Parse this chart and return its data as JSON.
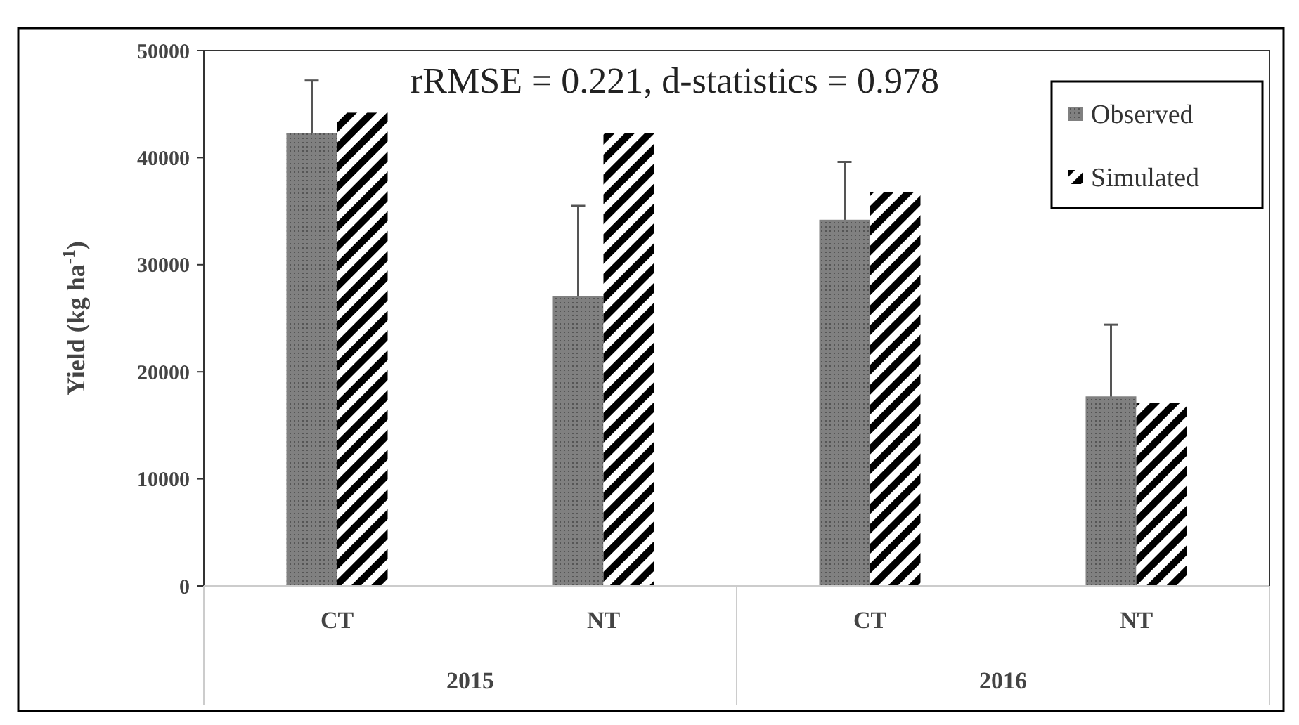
{
  "chart_data": {
    "type": "bar",
    "ylabel": "Yield (kg ha$^{-1}$)",
    "categories": [
      "CT",
      "NT",
      "CT",
      "NT"
    ],
    "series": [
      {
        "name": "Observed",
        "color": "#808080",
        "values": [
          42300,
          27100,
          34200,
          17700
        ],
        "errors": [
          4900,
          8400,
          5400,
          6700
        ]
      },
      {
        "name": "Simulated",
        "color": "#000000",
        "values": [
          44200,
          42300,
          36800,
          17100
        ]
      }
    ],
    "ylim": [
      0,
      50000
    ],
    "yticks": [
      0,
      10000,
      20000,
      30000,
      40000,
      50000
    ],
    "grid": false,
    "legend": "top right",
    "annotations": [
      "rRMSE = 0.221, d-statistics = 0.978",
      "2015",
      "2016"
    ]
  }
}
